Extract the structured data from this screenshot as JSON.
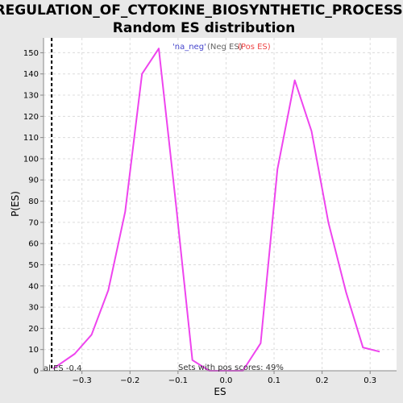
{
  "chart_data": {
    "type": "line",
    "title_line1": "REGULATION_OF_CYTOKINE_BIOSYNTHETIC_PROCESS:",
    "title_line2": "Random ES distribution",
    "xlabel": "ES",
    "ylabel": "P(ES)",
    "xlim": [
      -0.38,
      0.355
    ],
    "ylim": [
      0,
      157
    ],
    "xticks": [
      -0.3,
      -0.2,
      -0.1,
      0.0,
      0.1,
      0.2,
      0.3
    ],
    "xtick_labels": [
      "−0.3",
      "−0.2",
      "−0.1",
      "0.0",
      "0.1",
      "0.2",
      "0.3"
    ],
    "yticks": [
      0,
      10,
      20,
      30,
      40,
      50,
      60,
      70,
      80,
      90,
      100,
      110,
      120,
      130,
      140,
      150
    ],
    "ytick_labels": [
      "0",
      "10",
      "20",
      "30",
      "40",
      "50",
      "60",
      "70",
      "80",
      "90",
      "100",
      "110",
      "120",
      "130",
      "140",
      "150"
    ],
    "grid": true,
    "series": [
      {
        "color": "#ee44ee",
        "x": [
          -0.36,
          -0.315,
          -0.28,
          -0.245,
          -0.21,
          -0.175,
          -0.14,
          -0.105,
          -0.07,
          -0.035,
          0.0,
          0.035,
          0.072,
          0.107,
          0.143,
          0.178,
          0.213,
          0.25,
          0.285,
          0.32
        ],
        "y": [
          1,
          8,
          17,
          38,
          75,
          140,
          152,
          80,
          5,
          0,
          0,
          0,
          13,
          95,
          137,
          113,
          70,
          37,
          11,
          9
        ]
      }
    ],
    "vline": {
      "x": -0.363,
      "color": "#000000",
      "style": "dashed"
    },
    "legend": {
      "neg_label": "'na_neg'",
      "neg_color": "#4444cc",
      "neg_es": "(Neg ES)",
      "neg_es_color": "#666666",
      "pos_es": "(Pos ES)",
      "pos_es_color": "#ee4444",
      "position": "top-center"
    },
    "annotations": {
      "bottom_left": "al ES -0.4",
      "bottom_center": "Sets with pos scores: 49%"
    }
  }
}
